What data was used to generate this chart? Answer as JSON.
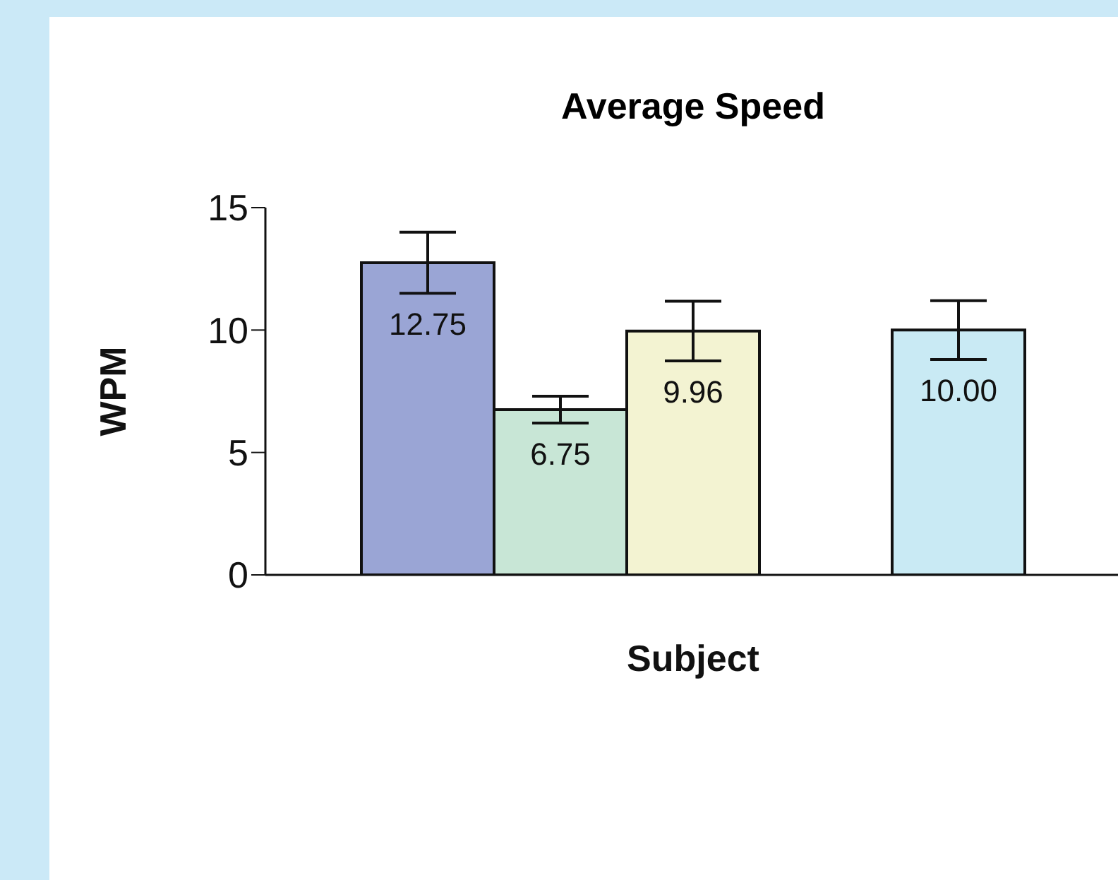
{
  "chart_data": {
    "type": "bar",
    "title": "Average Speed",
    "xlabel": "Subject",
    "ylabel": "WPM",
    "categories": [
      null,
      null,
      null,
      null,
      null
    ],
    "values": [
      12.75,
      6.75,
      9.96,
      null,
      10.0
    ],
    "colors": [
      "#9aa5d5",
      "#c8e6d6",
      "#f3f3d2",
      "#ffffff",
      "#c9eaf4"
    ],
    "errors": [
      1.25,
      0.55,
      1.22,
      null,
      1.2
    ],
    "value_labels": [
      "12.75",
      "6.75",
      "9.96",
      null,
      "10.00"
    ],
    "ylim": [
      0,
      15
    ],
    "yticks": [
      0,
      5,
      10,
      15
    ],
    "grid": false
  }
}
